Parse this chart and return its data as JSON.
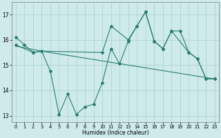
{
  "line1_x": [
    0,
    1,
    2,
    3,
    4,
    5,
    6,
    7,
    8,
    9,
    10,
    11,
    12,
    13,
    14,
    15,
    16,
    17,
    18,
    19,
    20,
    21,
    22,
    23
  ],
  "line1_y": [
    16.1,
    15.8,
    15.5,
    15.55,
    14.75,
    13.05,
    13.85,
    13.05,
    13.35,
    13.45,
    14.3,
    15.65,
    15.05,
    15.95,
    16.55,
    17.1,
    15.95,
    15.65,
    16.35,
    16.35,
    15.5,
    15.25,
    14.45,
    14.45
  ],
  "line2_x": [
    0,
    2,
    3,
    10,
    11,
    13,
    14,
    15,
    16,
    17,
    18,
    20,
    21,
    22,
    23
  ],
  "line2_y": [
    15.8,
    15.5,
    15.55,
    15.5,
    16.55,
    16.0,
    16.55,
    17.1,
    15.95,
    15.65,
    16.35,
    15.5,
    15.25,
    14.45,
    14.45
  ],
  "line3_x": [
    0,
    3,
    23
  ],
  "line3_y": [
    15.75,
    15.55,
    14.45
  ],
  "line_color": "#2a7d6e",
  "bg_color": "#ceeaea",
  "grid_color": "#aacfcf",
  "xlabel": "Humidex (Indice chaleur)",
  "ylim": [
    12.75,
    17.5
  ],
  "xlim": [
    -0.5,
    23.5
  ],
  "yticks": [
    13,
    14,
    15,
    16,
    17
  ],
  "xticks": [
    0,
    1,
    2,
    3,
    4,
    5,
    6,
    7,
    8,
    9,
    10,
    11,
    12,
    13,
    14,
    15,
    16,
    17,
    18,
    19,
    20,
    21,
    22,
    23
  ]
}
